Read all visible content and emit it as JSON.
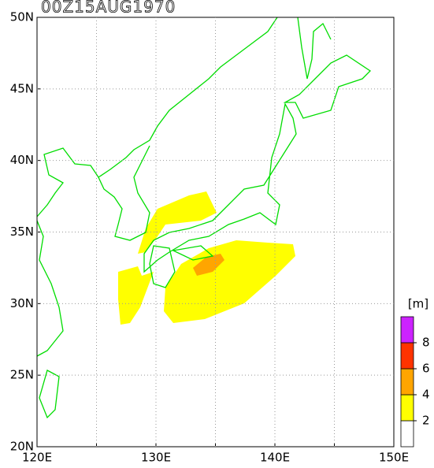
{
  "chart_data": {
    "type": "map",
    "title": "00Z15AUG1970",
    "xlim": [
      120,
      150
    ],
    "ylim": [
      20,
      50
    ],
    "xticks": [
      {
        "value": 120,
        "label": "120E"
      },
      {
        "value": 125,
        "label": ""
      },
      {
        "value": 130,
        "label": "130E"
      },
      {
        "value": 135,
        "label": ""
      },
      {
        "value": 140,
        "label": "140E"
      },
      {
        "value": 145,
        "label": ""
      },
      {
        "value": 150,
        "label": "150E"
      }
    ],
    "yticks": [
      {
        "value": 20,
        "label": "20N"
      },
      {
        "value": 25,
        "label": "25N"
      },
      {
        "value": 30,
        "label": "30N"
      },
      {
        "value": 35,
        "label": "35N"
      },
      {
        "value": 40,
        "label": "40N"
      },
      {
        "value": 45,
        "label": "45N"
      },
      {
        "value": 50,
        "label": "50N"
      }
    ],
    "grid": true,
    "coast_color": "#00dd00",
    "colorbar": {
      "unit": "[m]",
      "levels": [
        2,
        4,
        6,
        8
      ],
      "colors": [
        "#ffffff",
        "#ffff00",
        "#ffa500",
        "#ff3300",
        "#cc22ff"
      ]
    }
  }
}
